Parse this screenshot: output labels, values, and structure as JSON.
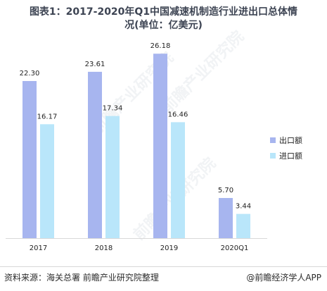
{
  "title_line1": "图表1：2017-2020年Q1中国减速机制造行业进出口总体情",
  "title_line2": "况(单位：亿美元)",
  "source": "资料来源：海关总署 前瞻产业研究院整理",
  "brand": "@前瞻经济学人APP",
  "watermark": "前瞻产业研究院",
  "colors": {
    "export": "#a7b5ef",
    "import": "#b9e6fa",
    "title": "#3d4453"
  },
  "chart_data": {
    "type": "bar",
    "categories": [
      "2017",
      "2018",
      "2019",
      "2020Q1"
    ],
    "series": [
      {
        "name": "出口额",
        "values": [
          22.3,
          23.61,
          26.18,
          5.7
        ],
        "labels": [
          "22.30",
          "23.61",
          "26.18",
          "5.70"
        ]
      },
      {
        "name": "进口额",
        "values": [
          16.17,
          17.34,
          16.46,
          3.44
        ],
        "labels": [
          "16.17",
          "17.34",
          "16.46",
          "3.44"
        ]
      }
    ],
    "ylim": [
      0,
      28
    ],
    "grid": false,
    "legend_position": "right"
  }
}
